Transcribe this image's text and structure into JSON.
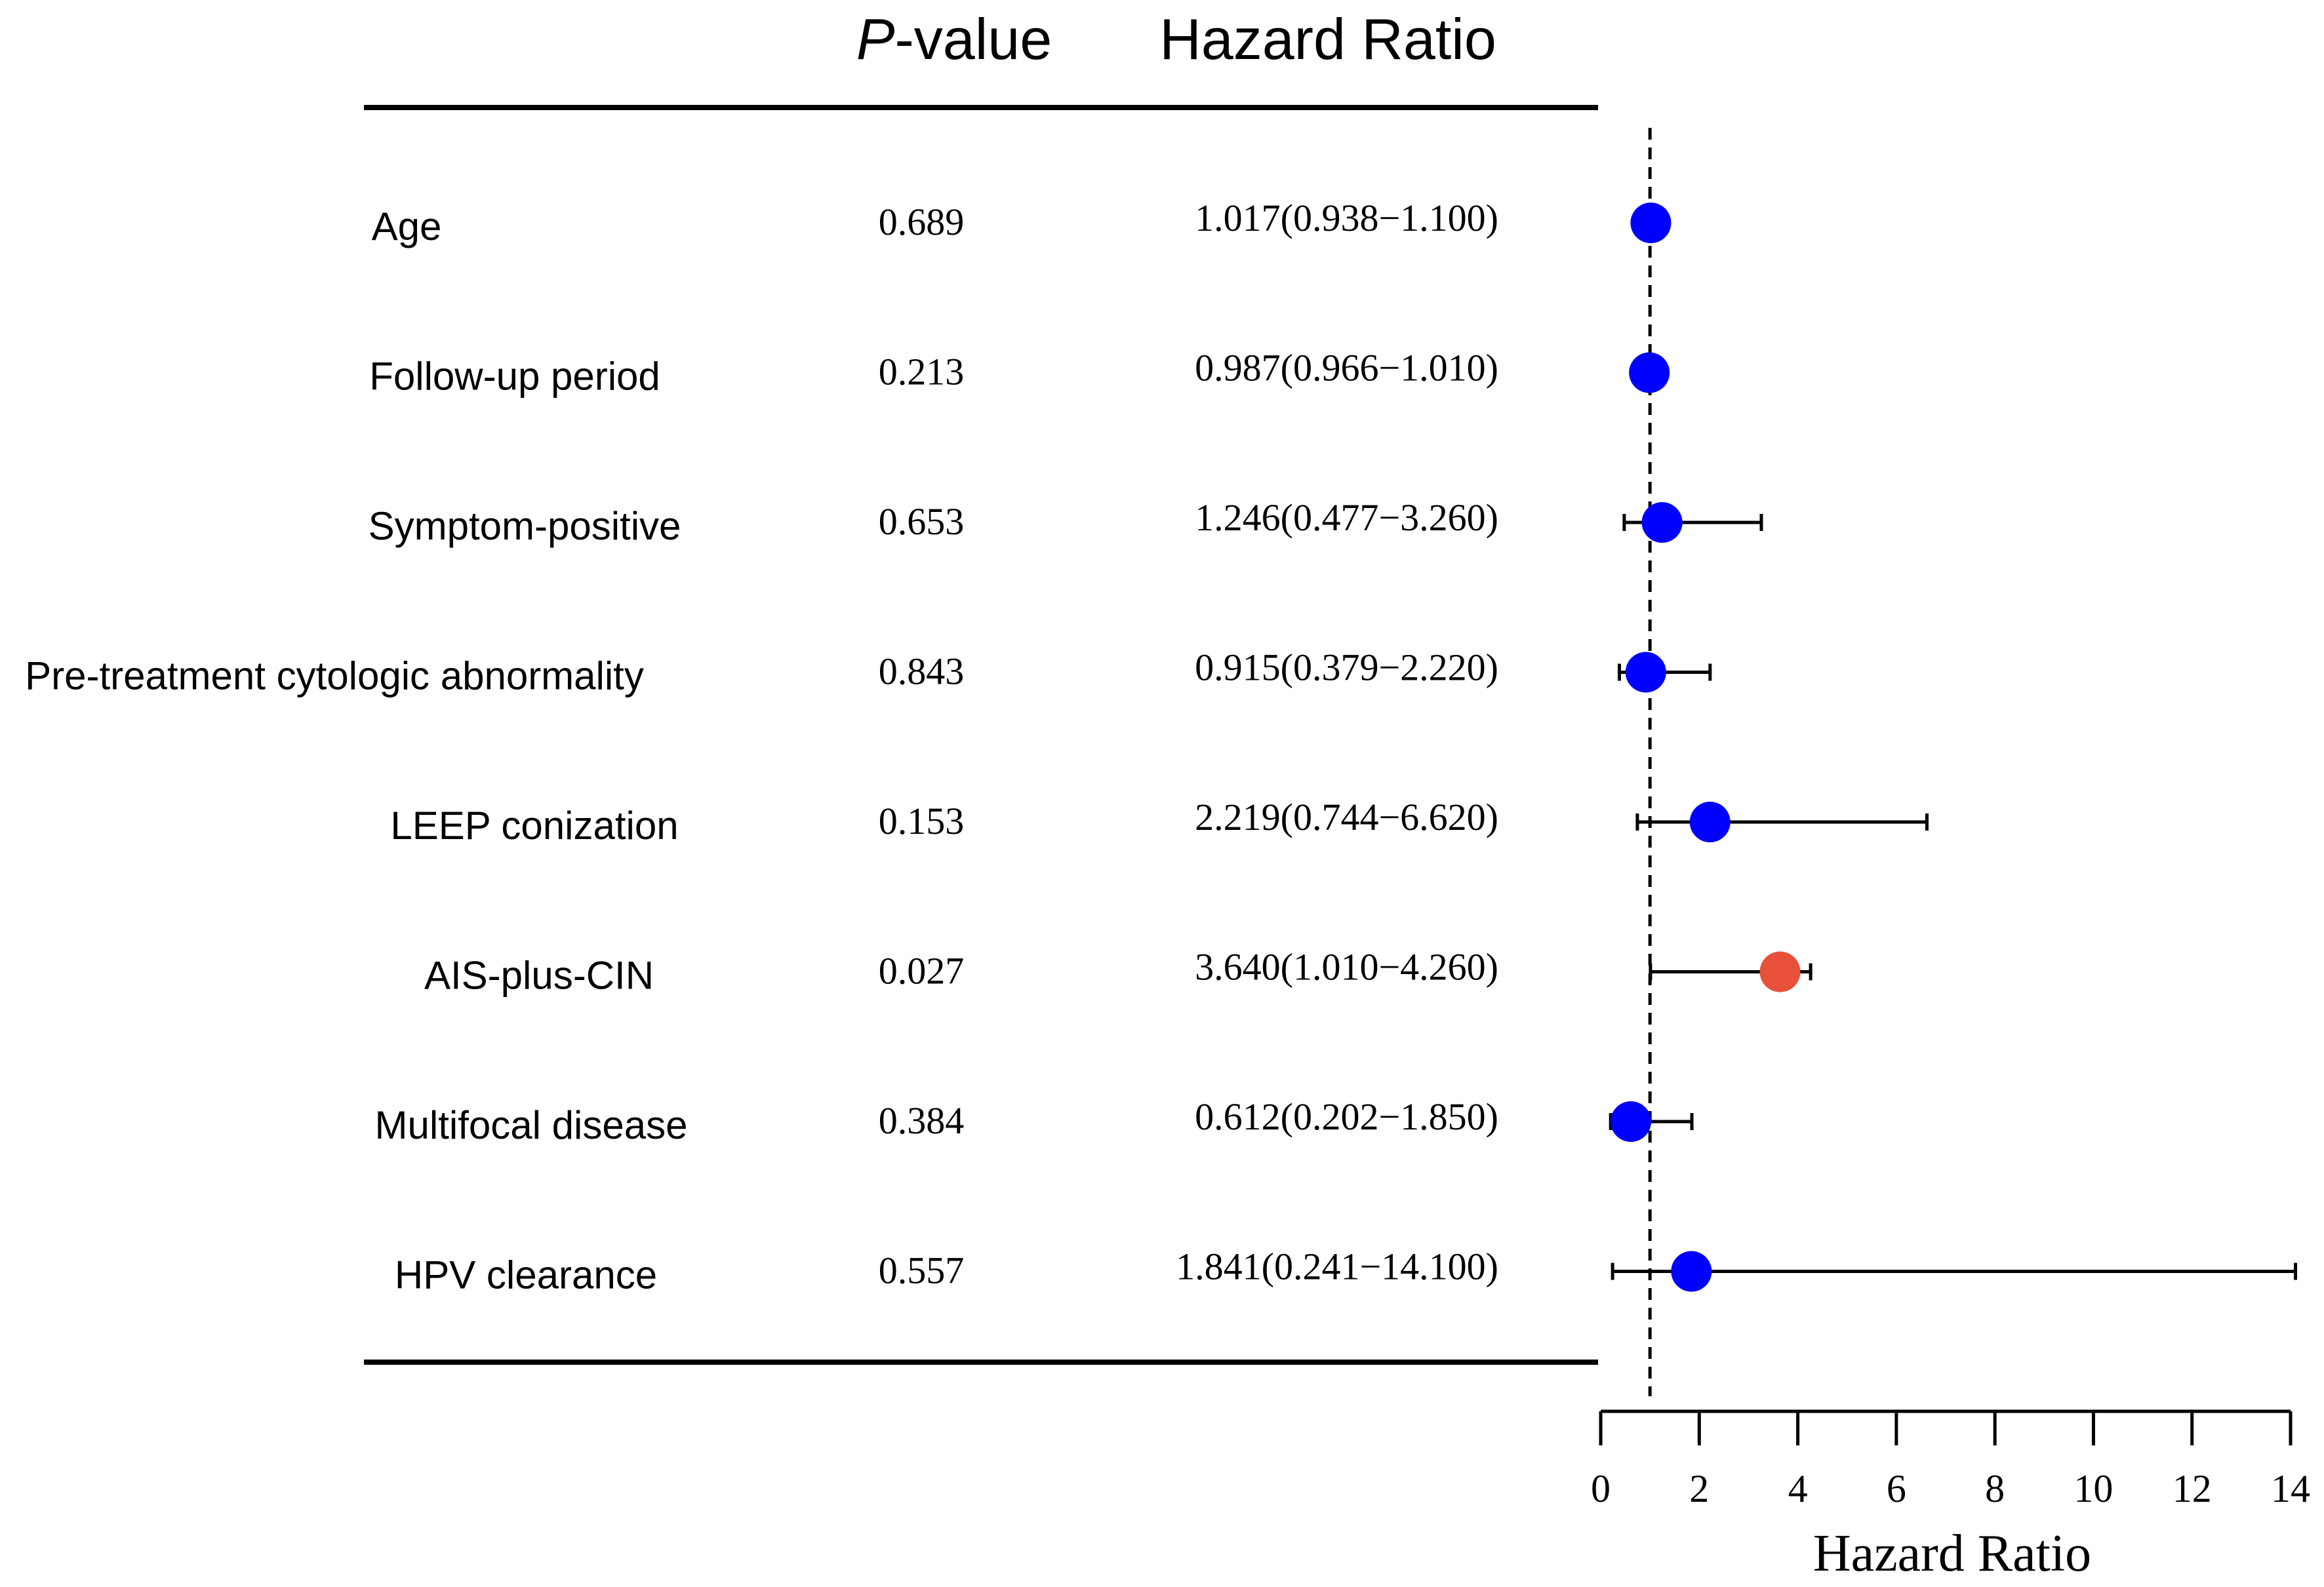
{
  "chart_data": {
    "type": "forest",
    "title": "",
    "columns": {
      "p_header_italic": "P",
      "p_header_rest": "-value",
      "hr_header": "Hazard Ratio"
    },
    "xlabel": "Hazard Ratio",
    "xlim": [
      0,
      14
    ],
    "xticks": [
      0,
      2,
      4,
      6,
      8,
      10,
      12,
      14
    ],
    "xtick_labels": [
      "0",
      "2",
      "4",
      "6",
      "8",
      "10",
      "12",
      "14"
    ],
    "reference_line": 1,
    "colors": {
      "non_significant": "#0000ff",
      "significant": "#e8503a",
      "lines": "#000000"
    },
    "rows": [
      {
        "label": "Age",
        "p": "0.689",
        "hr_text": "1.017(0.938−1.100)",
        "hr": 1.017,
        "lo": 0.938,
        "hi": 1.1,
        "significant": false
      },
      {
        "label": "Follow-up period",
        "p": "0.213",
        "hr_text": "0.987(0.966−1.010)",
        "hr": 0.987,
        "lo": 0.966,
        "hi": 1.01,
        "significant": false
      },
      {
        "label": "Symptom-positive",
        "p": "0.653",
        "hr_text": "1.246(0.477−3.260)",
        "hr": 1.246,
        "lo": 0.477,
        "hi": 3.26,
        "significant": false
      },
      {
        "label": "Pre-treatment cytologic abnormality",
        "p": "0.843",
        "hr_text": "0.915(0.379−2.220)",
        "hr": 0.915,
        "lo": 0.379,
        "hi": 2.22,
        "significant": false
      },
      {
        "label": "LEEP conization",
        "p": "0.153",
        "hr_text": "2.219(0.744−6.620)",
        "hr": 2.219,
        "lo": 0.744,
        "hi": 6.62,
        "significant": false
      },
      {
        "label": "AIS-plus-CIN",
        "p": "0.027",
        "hr_text": "3.640(1.010−4.260)",
        "hr": 3.64,
        "lo": 1.01,
        "hi": 4.26,
        "significant": true
      },
      {
        "label": "Multifocal disease",
        "p": "0.384",
        "hr_text": "0.612(0.202−1.850)",
        "hr": 0.612,
        "lo": 0.202,
        "hi": 1.85,
        "significant": false
      },
      {
        "label": "HPV clearance",
        "p": "0.557",
        "hr_text": "1.841(0.241−14.100)",
        "hr": 1.841,
        "lo": 0.241,
        "hi": 14.1,
        "significant": false
      }
    ]
  }
}
